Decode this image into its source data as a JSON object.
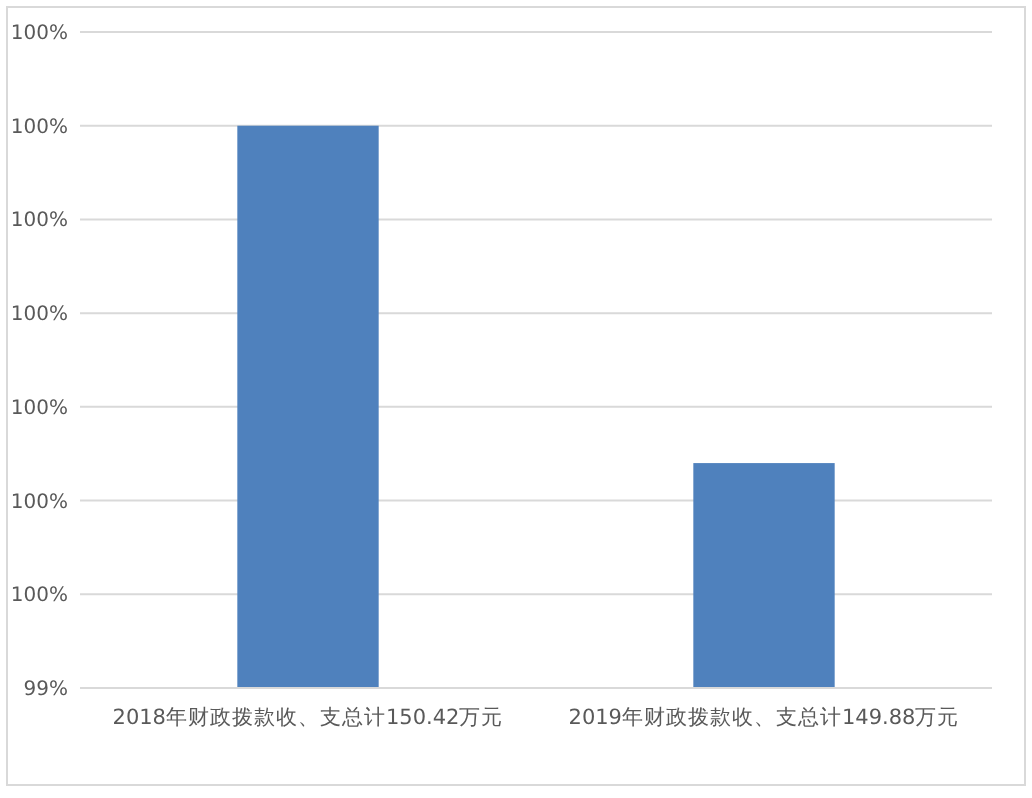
{
  "chart_data": {
    "type": "bar",
    "categories": [
      "2018年财政拨款收、支总计150.42万元",
      "2019年财政拨款收、支总计149.88万元"
    ],
    "values": [
      100,
      99.64
    ],
    "color": "#4f81bd",
    "ylim": [
      99.4,
      100.1
    ],
    "yticks": [
      {
        "value": 99.4,
        "label": "99%"
      },
      {
        "value": 99.5,
        "label": "100%"
      },
      {
        "value": 99.6,
        "label": "100%"
      },
      {
        "value": 99.7,
        "label": "100%"
      },
      {
        "value": 99.8,
        "label": "100%"
      },
      {
        "value": 99.9,
        "label": "100%"
      },
      {
        "value": 100,
        "label": "100%"
      },
      {
        "value": 100.1,
        "label": "100%"
      }
    ],
    "grid": true
  }
}
